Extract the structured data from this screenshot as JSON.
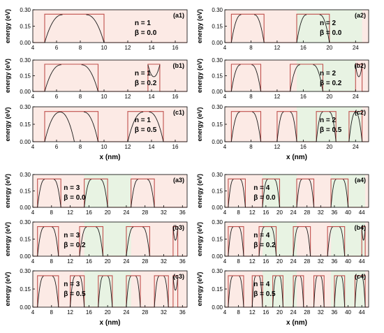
{
  "colors": {
    "barrier_line": "#c0504d",
    "barrier_fill": "#fbe3dc",
    "green_fill": "#e8f3e3",
    "wavefunction": "#1a1a1a",
    "axis": "#000000"
  },
  "chart_data": [
    {
      "panel_label": "(a1)",
      "n_text": "n = 1",
      "beta_text": "β = 0.0",
      "type": "line",
      "x_label": "",
      "y_label": "energy (eV)",
      "xlim": [
        4,
        17
      ],
      "ylim": [
        0,
        0.3
      ],
      "x_ticks": [
        "4",
        "6",
        "8",
        "10",
        "12",
        "14",
        "16"
      ],
      "y_ticks": [
        "0.00",
        "0.15",
        "0.30"
      ],
      "barrier_height": 0.26,
      "well_regions": [
        [
          5,
          10
        ]
      ],
      "green_regions": [],
      "wavefunction_bumps": [
        [
          5,
          6.5,
          "r"
        ],
        [
          8.5,
          10,
          "l"
        ]
      ]
    },
    {
      "panel_label": "(b1)",
      "n_text": "n = 1",
      "beta_text": "β = 0.2",
      "type": "line",
      "x_label": "",
      "y_label": "energy (eV)",
      "xlim": [
        4,
        17
      ],
      "ylim": [
        0,
        0.3
      ],
      "x_ticks": [
        "4",
        "6",
        "8",
        "10",
        "12",
        "14",
        "16"
      ],
      "y_ticks": [
        "0.00",
        "0.15",
        "0.30"
      ],
      "barrier_height": 0.26,
      "well_regions": [
        [
          5,
          9.5
        ],
        [
          13.7,
          14.7
        ]
      ],
      "green_regions": [],
      "wavefunction_bumps": [
        [
          5,
          6.4,
          "r"
        ],
        [
          8.1,
          9.5,
          "l"
        ],
        [
          13.7,
          14.7,
          "u"
        ]
      ]
    },
    {
      "panel_label": "(c1)",
      "n_text": "n = 1",
      "beta_text": "β = 0.5",
      "type": "line",
      "x_label": "x (nm)",
      "y_label": "energy (eV)",
      "xlim": [
        4,
        17
      ],
      "ylim": [
        0,
        0.3
      ],
      "x_ticks": [
        "4",
        "6",
        "8",
        "10",
        "12",
        "14",
        "16"
      ],
      "y_ticks": [
        "0.00",
        "0.15",
        "0.30"
      ],
      "barrier_height": 0.26,
      "well_regions": [
        [
          5,
          9.5
        ],
        [
          12,
          15
        ]
      ],
      "green_regions": [],
      "wavefunction_bumps": [
        [
          5,
          6.3,
          "r"
        ],
        [
          6.3,
          7.5,
          "l"
        ],
        [
          8.3,
          9.5,
          "l"
        ],
        [
          12,
          13.3,
          "r"
        ],
        [
          13.8,
          15,
          "l"
        ]
      ]
    },
    {
      "panel_label": "(a2)",
      "n_text": "n = 2",
      "beta_text": "β = 0.0",
      "type": "line",
      "x_label": "",
      "y_label": "energy (eV)",
      "xlim": [
        4,
        26
      ],
      "ylim": [
        0,
        0.3
      ],
      "x_ticks": [
        "4",
        "8",
        "12",
        "16",
        "20",
        "24"
      ],
      "y_ticks": [
        "0.00",
        "0.15",
        "0.30"
      ],
      "barrier_height": 0.26,
      "well_regions": [
        [
          5,
          10
        ],
        [
          15,
          20
        ]
      ],
      "green_regions": [
        [
          15,
          25
        ]
      ],
      "wavefunction_bumps": [
        [
          5,
          6.5,
          "r"
        ],
        [
          8.5,
          10,
          "l"
        ],
        [
          15,
          16.5,
          "r"
        ],
        [
          18.5,
          20,
          "l"
        ]
      ]
    },
    {
      "panel_label": "(b2)",
      "n_text": "n = 2",
      "beta_text": "β = 0.2",
      "type": "line",
      "x_label": "",
      "y_label": "energy (eV)",
      "xlim": [
        4,
        26
      ],
      "ylim": [
        0,
        0.3
      ],
      "x_ticks": [
        "4",
        "8",
        "12",
        "16",
        "20",
        "24"
      ],
      "y_ticks": [
        "0.00",
        "0.15",
        "0.30"
      ],
      "barrier_height": 0.26,
      "well_regions": [
        [
          5,
          9.5
        ],
        [
          14,
          19
        ],
        [
          24,
          25
        ]
      ],
      "green_regions": [
        [
          15,
          24
        ]
      ],
      "wavefunction_bumps": [
        [
          5,
          6.4,
          "r"
        ],
        [
          8.1,
          9.5,
          "l"
        ],
        [
          14,
          15.5,
          "r"
        ],
        [
          17.5,
          19,
          "l"
        ],
        [
          24,
          25,
          "u"
        ]
      ]
    },
    {
      "panel_label": "(c2)",
      "n_text": "n = 2",
      "beta_text": "β = 0.5",
      "type": "line",
      "x_label": "x (nm)",
      "y_label": "energy (eV)",
      "xlim": [
        4,
        26
      ],
      "ylim": [
        0,
        0.3
      ],
      "x_ticks": [
        "4",
        "8",
        "12",
        "16",
        "20",
        "24"
      ],
      "y_ticks": [
        "0.00",
        "0.15",
        "0.30"
      ],
      "barrier_height": 0.26,
      "well_regions": [
        [
          5,
          9.5
        ],
        [
          12,
          15
        ],
        [
          18,
          21
        ],
        [
          23,
          25
        ]
      ],
      "green_regions": [
        [
          15,
          25
        ]
      ],
      "wavefunction_bumps": [
        [
          5,
          6.3,
          "r"
        ],
        [
          8.2,
          9.5,
          "l"
        ],
        [
          12,
          13,
          "r"
        ],
        [
          14,
          15,
          "l"
        ],
        [
          18,
          19,
          "r"
        ],
        [
          20,
          21,
          "l"
        ],
        [
          23,
          24,
          "r"
        ],
        [
          24,
          25,
          "l"
        ]
      ]
    },
    {
      "panel_label": "(a3)",
      "n_text": "n = 3",
      "beta_text": "β = 0.0",
      "type": "line",
      "x_label": "",
      "y_label": "energy (eV)",
      "xlim": [
        4,
        37
      ],
      "ylim": [
        0,
        0.3
      ],
      "x_ticks": [
        "4",
        "8",
        "12",
        "16",
        "20",
        "24",
        "28",
        "32",
        "36"
      ],
      "y_ticks": [
        "0.00",
        "0.15",
        "0.30"
      ],
      "barrier_height": 0.26,
      "well_regions": [
        [
          5,
          10
        ],
        [
          15,
          20
        ],
        [
          25,
          30
        ]
      ],
      "green_regions": [
        [
          15,
          25
        ]
      ],
      "wavefunction_bumps": [
        [
          5,
          6.5,
          "r"
        ],
        [
          8.5,
          10,
          "l"
        ],
        [
          15,
          16.5,
          "r"
        ],
        [
          18.5,
          20,
          "l"
        ],
        [
          25,
          26.5,
          "r"
        ],
        [
          28.5,
          30,
          "l"
        ]
      ]
    },
    {
      "panel_label": "(b3)",
      "n_text": "n = 3",
      "beta_text": "β = 0.2",
      "type": "line",
      "x_label": "",
      "y_label": "energy (eV)",
      "xlim": [
        4,
        37
      ],
      "ylim": [
        0,
        0.3
      ],
      "x_ticks": [
        "4",
        "8",
        "12",
        "16",
        "20",
        "24",
        "28",
        "32",
        "36"
      ],
      "y_ticks": [
        "0.00",
        "0.15",
        "0.30"
      ],
      "barrier_height": 0.26,
      "well_regions": [
        [
          5,
          9.5
        ],
        [
          14,
          19
        ],
        [
          24,
          29
        ],
        [
          34,
          35
        ]
      ],
      "green_regions": [
        [
          15,
          25
        ]
      ],
      "wavefunction_bumps": [
        [
          5,
          6.4,
          "r"
        ],
        [
          8.1,
          9.5,
          "l"
        ],
        [
          14,
          15.5,
          "r"
        ],
        [
          17.5,
          19,
          "l"
        ],
        [
          24,
          25.5,
          "r"
        ],
        [
          27.5,
          29,
          "l"
        ],
        [
          34,
          35,
          "u"
        ]
      ]
    },
    {
      "panel_label": "(c3)",
      "n_text": "n = 3",
      "beta_text": "β = 0.5",
      "type": "line",
      "x_label": "x (nm)",
      "y_label": "energy (eV)",
      "xlim": [
        4,
        37
      ],
      "ylim": [
        0,
        0.3
      ],
      "x_ticks": [
        "4",
        "8",
        "12",
        "16",
        "20",
        "24",
        "28",
        "32",
        "36"
      ],
      "y_ticks": [
        "0.00",
        "0.15",
        "0.30"
      ],
      "barrier_height": 0.26,
      "well_regions": [
        [
          5,
          9.5
        ],
        [
          12,
          15
        ],
        [
          18,
          21
        ],
        [
          24,
          27
        ],
        [
          30,
          33
        ],
        [
          34,
          35
        ]
      ],
      "green_regions": [
        [
          15,
          25
        ]
      ],
      "wavefunction_bumps": [
        [
          5,
          6.3,
          "r"
        ],
        [
          8.2,
          9.5,
          "l"
        ],
        [
          12,
          13,
          "r"
        ],
        [
          14,
          15,
          "l"
        ],
        [
          18,
          19,
          "r"
        ],
        [
          20,
          21,
          "l"
        ],
        [
          24,
          25,
          "r"
        ],
        [
          26,
          27,
          "l"
        ],
        [
          30,
          31,
          "r"
        ],
        [
          32,
          33,
          "l"
        ],
        [
          34,
          35,
          "u"
        ]
      ]
    },
    {
      "panel_label": "(a4)",
      "n_text": "n = 4",
      "beta_text": "β = 0.0",
      "type": "line",
      "x_label": "",
      "y_label": "energy (eV)",
      "xlim": [
        4,
        46
      ],
      "ylim": [
        0,
        0.3
      ],
      "x_ticks": [
        "4",
        "8",
        "12",
        "16",
        "20",
        "24",
        "28",
        "32",
        "36",
        "40",
        "44"
      ],
      "y_ticks": [
        "0.00",
        "0.15",
        "0.30"
      ],
      "barrier_height": 0.26,
      "well_regions": [
        [
          5,
          10
        ],
        [
          15,
          20
        ],
        [
          25,
          30
        ],
        [
          35,
          40
        ]
      ],
      "green_regions": [
        [
          15,
          25
        ],
        [
          35,
          45
        ]
      ],
      "wavefunction_bumps": [
        [
          5,
          6.5,
          "r"
        ],
        [
          8.5,
          10,
          "l"
        ],
        [
          15,
          16.5,
          "r"
        ],
        [
          18.5,
          20,
          "l"
        ],
        [
          25,
          26.5,
          "r"
        ],
        [
          28.5,
          30,
          "l"
        ],
        [
          35,
          36.5,
          "r"
        ],
        [
          38.5,
          40,
          "l"
        ]
      ]
    },
    {
      "panel_label": "(b4)",
      "n_text": "n = 4",
      "beta_text": "β = 0.2",
      "type": "line",
      "x_label": "",
      "y_label": "energy (eV)",
      "xlim": [
        4,
        46
      ],
      "ylim": [
        0,
        0.3
      ],
      "x_ticks": [
        "4",
        "8",
        "12",
        "16",
        "20",
        "24",
        "28",
        "32",
        "36",
        "40",
        "44"
      ],
      "y_ticks": [
        "0.00",
        "0.15",
        "0.30"
      ],
      "barrier_height": 0.26,
      "well_regions": [
        [
          5,
          9.5
        ],
        [
          14,
          19
        ],
        [
          24,
          29
        ],
        [
          34,
          39
        ],
        [
          44,
          45
        ]
      ],
      "green_regions": [
        [
          15,
          25
        ],
        [
          35,
          45
        ]
      ],
      "wavefunction_bumps": [
        [
          5,
          6.4,
          "r"
        ],
        [
          8.1,
          9.5,
          "l"
        ],
        [
          14,
          15.5,
          "r"
        ],
        [
          17.5,
          19,
          "l"
        ],
        [
          24,
          25.5,
          "r"
        ],
        [
          27.5,
          29,
          "l"
        ],
        [
          34,
          35.5,
          "r"
        ],
        [
          37.5,
          39,
          "l"
        ],
        [
          44,
          45,
          "u"
        ]
      ]
    },
    {
      "panel_label": "(c4)",
      "n_text": "n = 4",
      "beta_text": "β = 0.5",
      "type": "line",
      "x_label": "x (nm)",
      "y_label": "energy (eV)",
      "xlim": [
        4,
        46
      ],
      "ylim": [
        0,
        0.3
      ],
      "x_ticks": [
        "4",
        "8",
        "12",
        "16",
        "20",
        "24",
        "28",
        "32",
        "36",
        "40",
        "44"
      ],
      "y_ticks": [
        "0.00",
        "0.15",
        "0.30"
      ],
      "barrier_height": 0.26,
      "well_regions": [
        [
          5,
          9.5
        ],
        [
          12,
          15
        ],
        [
          18,
          21
        ],
        [
          24,
          27
        ],
        [
          30,
          33
        ],
        [
          36,
          39
        ],
        [
          42,
          45
        ]
      ],
      "green_regions": [
        [
          15,
          25
        ],
        [
          35,
          45
        ]
      ],
      "wavefunction_bumps": [
        [
          5,
          6.3,
          "r"
        ],
        [
          8.2,
          9.5,
          "l"
        ],
        [
          12,
          13,
          "r"
        ],
        [
          14,
          15,
          "l"
        ],
        [
          18,
          19,
          "r"
        ],
        [
          20,
          21,
          "l"
        ],
        [
          24,
          25,
          "r"
        ],
        [
          26,
          27,
          "l"
        ],
        [
          30,
          31,
          "r"
        ],
        [
          32,
          33,
          "l"
        ],
        [
          36,
          37,
          "r"
        ],
        [
          38,
          39,
          "l"
        ],
        [
          42,
          43,
          "r"
        ],
        [
          44,
          45,
          "l"
        ]
      ]
    }
  ]
}
